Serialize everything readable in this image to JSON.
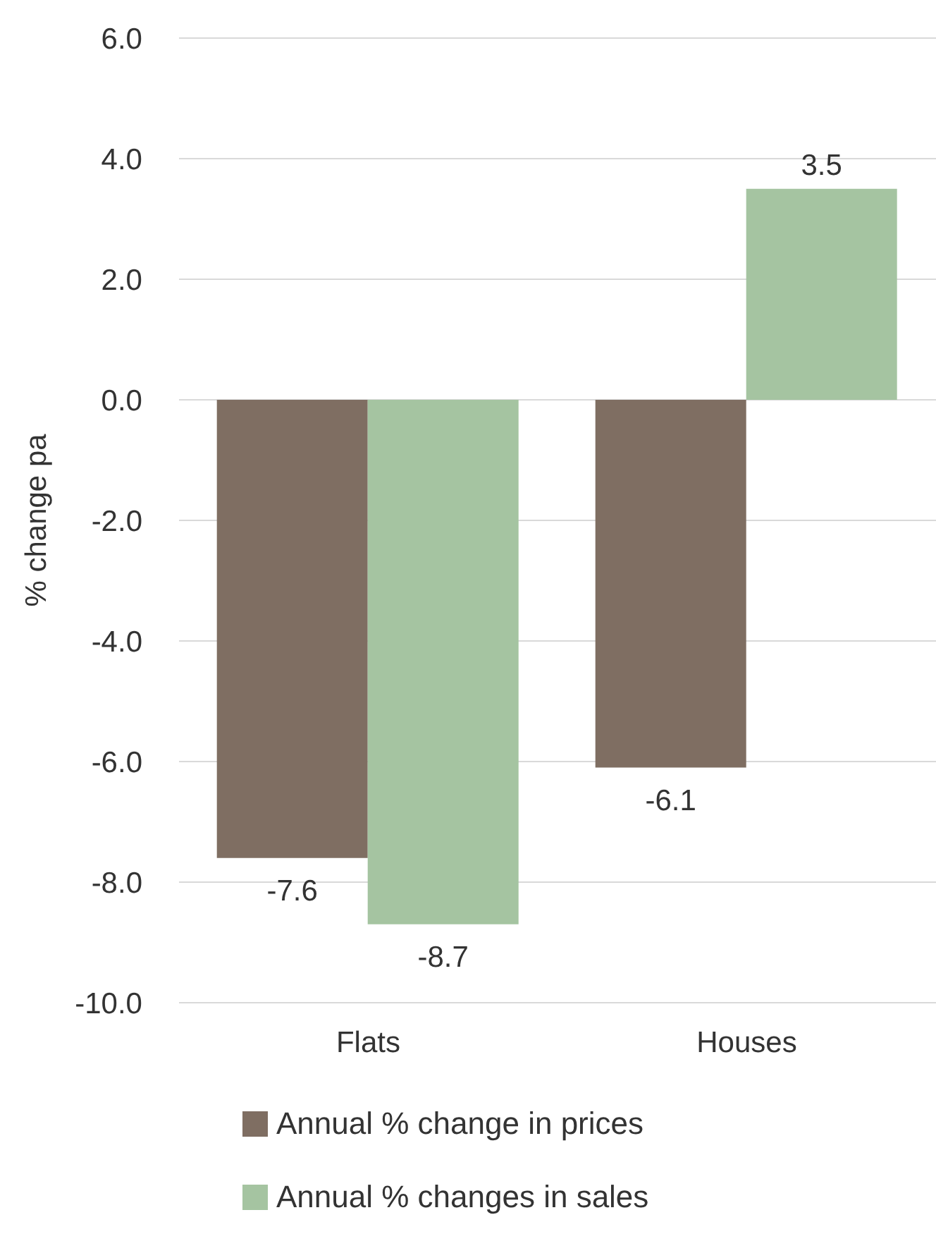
{
  "chart_data": {
    "type": "bar",
    "ylabel": "% change pa",
    "categories": [
      "Flats",
      "Houses"
    ],
    "series": [
      {
        "name": "Annual % change in prices",
        "color": "#7f6e62",
        "values": [
          -7.6,
          -6.1
        ]
      },
      {
        "name": "Annual % changes in sales",
        "color": "#a5c4a1",
        "values": [
          -8.7,
          3.5
        ]
      }
    ],
    "ylim": [
      -10,
      6
    ],
    "yticks": [
      {
        "value": -10,
        "label": "-10.0"
      },
      {
        "value": -8,
        "label": "-8.0"
      },
      {
        "value": -6,
        "label": "-6.0"
      },
      {
        "value": -4,
        "label": "-4.0"
      },
      {
        "value": -2,
        "label": "-2.0"
      },
      {
        "value": 0,
        "label": "0.0"
      },
      {
        "value": 2,
        "label": "2.0"
      },
      {
        "value": 4,
        "label": "4.0"
      },
      {
        "value": 6,
        "label": "6.0"
      }
    ],
    "grid": "y",
    "legend": "bottom",
    "data_labels": true
  }
}
